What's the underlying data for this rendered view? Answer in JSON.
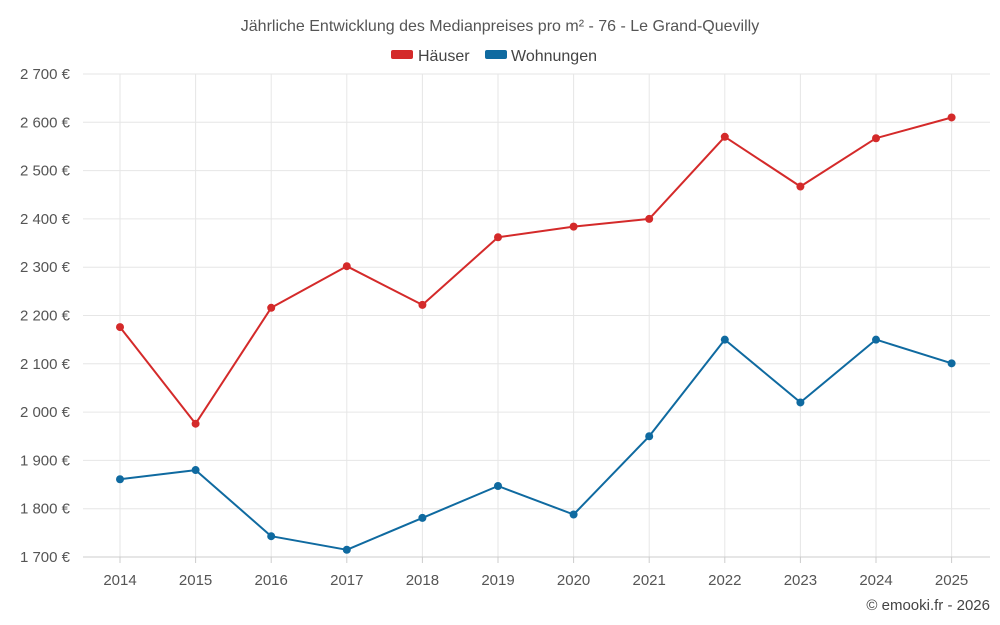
{
  "chart_data": {
    "type": "line",
    "title": "Jährliche Entwicklung des Medianpreises pro m² - 76 - Le Grand-Quevilly",
    "categories": [
      "2014",
      "2015",
      "2016",
      "2017",
      "2018",
      "2019",
      "2020",
      "2021",
      "2022",
      "2023",
      "2024",
      "2025"
    ],
    "series": [
      {
        "name": "Häuser",
        "color": "#d42a2a",
        "values": [
          2176,
          1976,
          2216,
          2302,
          2222,
          2362,
          2384,
          2400,
          2570,
          2467,
          2567,
          2610
        ]
      },
      {
        "name": "Wohnungen",
        "color": "#0f6aa0",
        "values": [
          1861,
          1880,
          1743,
          1715,
          1781,
          1847,
          1788,
          1950,
          2150,
          2020,
          2150,
          2101
        ]
      }
    ],
    "ylim": [
      1700,
      2700
    ],
    "yticks": [
      1700,
      1800,
      1900,
      2000,
      2100,
      2200,
      2300,
      2400,
      2500,
      2600,
      2700
    ],
    "ytick_labels": [
      "1 700 €",
      "1 800 €",
      "1 900 €",
      "2 000 €",
      "2 100 €",
      "2 200 €",
      "2 300 €",
      "2 400 €",
      "2 500 €",
      "2 600 €",
      "2 700 €"
    ],
    "xlabel": "",
    "ylabel": "",
    "grid": true,
    "legend": "top-center"
  },
  "credit": "© emooki.fr - 2026"
}
